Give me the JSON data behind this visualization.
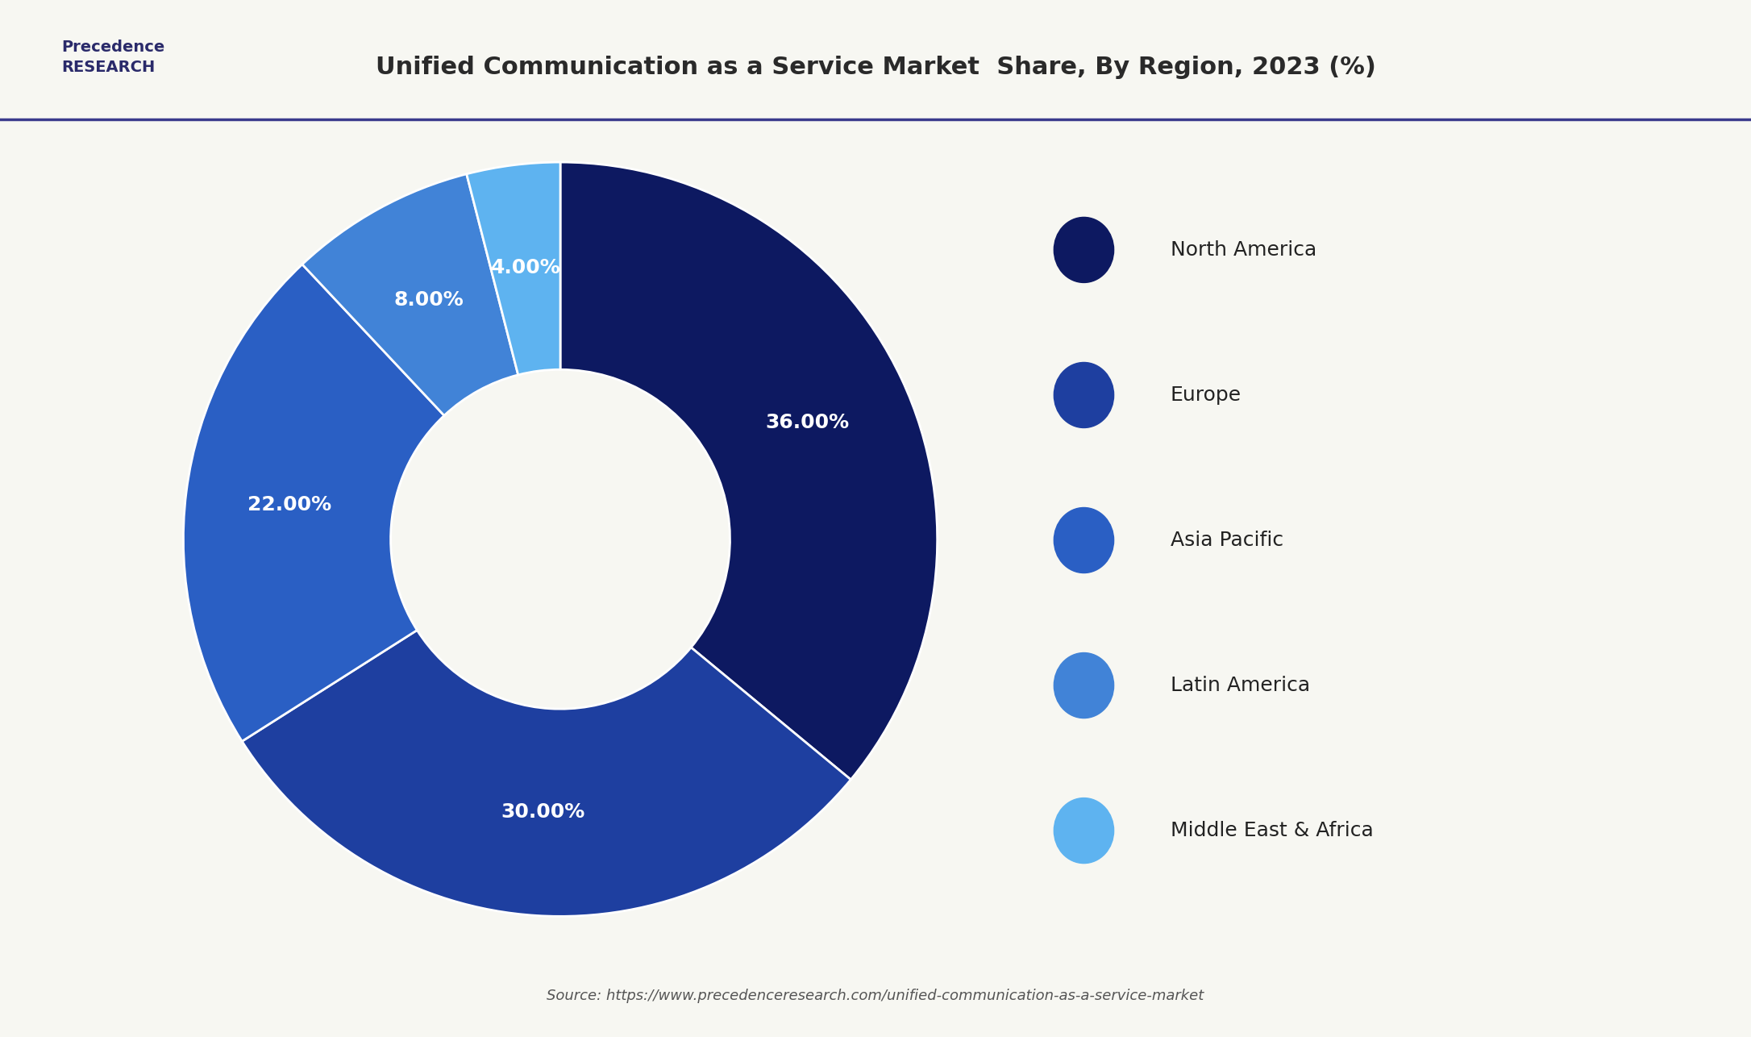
{
  "title": "Unified Communication as a Service Market  Share, By Region, 2023 (%)",
  "labels": [
    "North America",
    "Europe",
    "Asia Pacific",
    "Latin America",
    "Middle East & Africa"
  ],
  "values": [
    36.0,
    30.0,
    22.0,
    8.0,
    4.0
  ],
  "colors": [
    "#0d1961",
    "#1e3fa0",
    "#2a5fc4",
    "#4183d7",
    "#5eb3f0"
  ],
  "pct_labels": [
    "36.00%",
    "30.00%",
    "22.00%",
    "8.00%",
    "4.00%"
  ],
  "background_color": "#f7f7f2",
  "header_line_color": "#3a3a8c",
  "source_text": "Source: https://www.precedenceresearch.com/unified-communication-as-a-service-market",
  "title_fontsize": 22,
  "legend_fontsize": 18,
  "pct_fontsize": 18,
  "source_fontsize": 13
}
